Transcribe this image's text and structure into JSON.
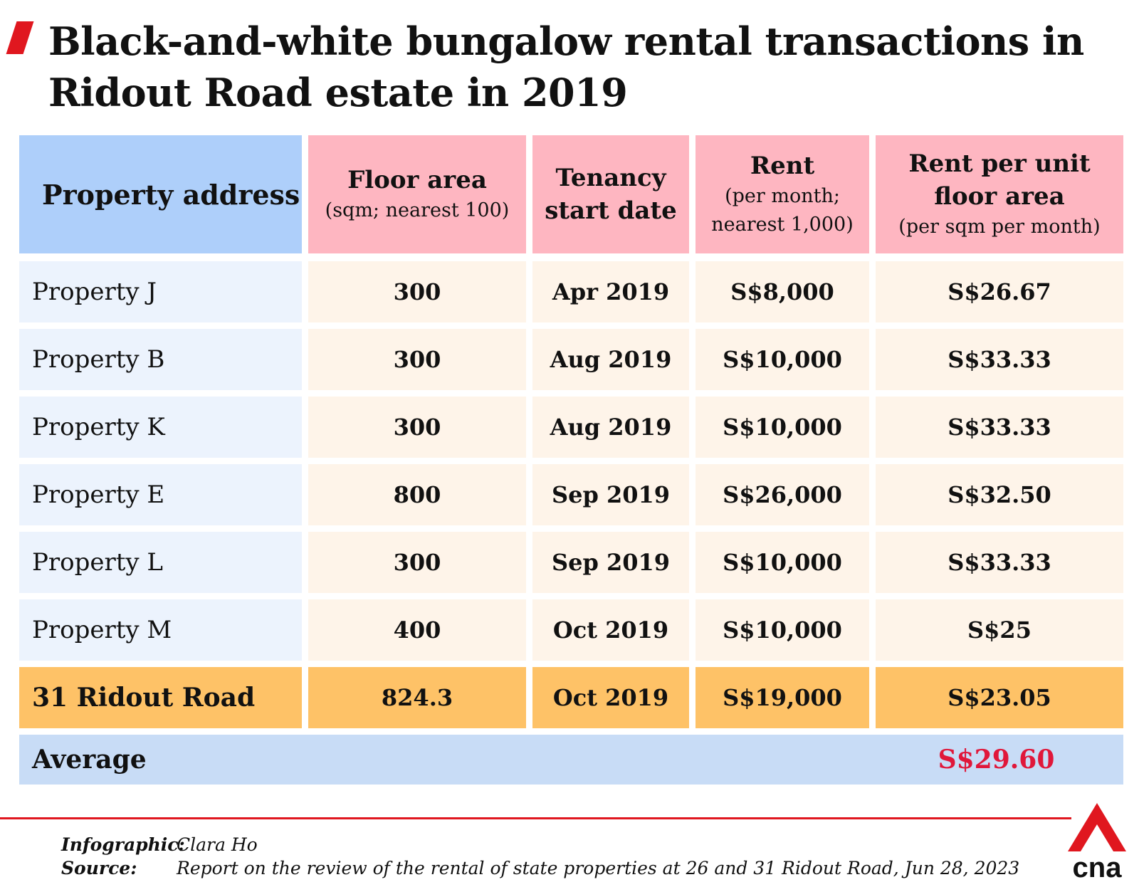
{
  "title": "Black-and-white bungalow rental transactions in Ridout Road estate in 2019",
  "headers": {
    "address": "Property address",
    "floor_area": "Floor area",
    "floor_area_sub": "(sqm; nearest 100)",
    "tenancy_line1": "Tenancy",
    "tenancy_line2": "start date",
    "rent": "Rent",
    "rent_sub1": "(per month;",
    "rent_sub2": "nearest 1,000)",
    "rpu_line1": "Rent per unit",
    "rpu_line2": "floor area",
    "rpu_sub": "(per sqm per month)"
  },
  "rows": [
    {
      "address": "Property J",
      "floor_area": "300",
      "start": "Apr 2019",
      "rent": "S$8,000",
      "rent_per_sqm": "S$26.67"
    },
    {
      "address": "Property B",
      "floor_area": "300",
      "start": "Aug 2019",
      "rent": "S$10,000",
      "rent_per_sqm": "S$33.33"
    },
    {
      "address": "Property K",
      "floor_area": "300",
      "start": "Aug 2019",
      "rent": "S$10,000",
      "rent_per_sqm": "S$33.33"
    },
    {
      "address": "Property E",
      "floor_area": "800",
      "start": "Sep 2019",
      "rent": "S$26,000",
      "rent_per_sqm": "S$32.50"
    },
    {
      "address": "Property L",
      "floor_area": "300",
      "start": "Sep 2019",
      "rent": "S$10,000",
      "rent_per_sqm": "S$33.33"
    },
    {
      "address": "Property M",
      "floor_area": "400",
      "start": "Oct 2019",
      "rent": "S$10,000",
      "rent_per_sqm": "S$25"
    }
  ],
  "highlight": {
    "address": "31 Ridout Road",
    "floor_area": "824.3",
    "start": "Oct 2019",
    "rent": "S$19,000",
    "rent_per_sqm": "S$23.05"
  },
  "average": {
    "label": "Average",
    "value": "S$29.60"
  },
  "footer": {
    "infographic_label": "Infographic:",
    "infographic_value": "Clara Ho",
    "source_label": "Source:",
    "source_value": "Report on the review of the rental of state properties at 26 and 31 Ridout Road, Jun 28, 2023"
  },
  "logo": {
    "text": "cna",
    "icon": "cna-logo-icon"
  },
  "colors": {
    "accent_red": "#e0171f",
    "header_pink": "#feb6c1",
    "header_blue": "#aecffa",
    "address_cell": "#ecf3fd",
    "data_cell": "#fef4e9",
    "highlight_row": "#fec267",
    "average_row": "#c8dcf6",
    "average_value": "#e0173a"
  },
  "chart_data": {
    "type": "table",
    "title": "Black-and-white bungalow rental transactions in Ridout Road estate in 2019",
    "columns": [
      "Property address",
      "Floor area (sqm; nearest 100)",
      "Tenancy start date",
      "Rent (per month; nearest 1,000)",
      "Rent per unit floor area (per sqm per month)"
    ],
    "rows": [
      [
        "Property J",
        300,
        "Apr 2019",
        8000,
        26.67
      ],
      [
        "Property B",
        300,
        "Aug 2019",
        10000,
        33.33
      ],
      [
        "Property K",
        300,
        "Aug 2019",
        10000,
        33.33
      ],
      [
        "Property E",
        800,
        "Sep 2019",
        26000,
        32.5
      ],
      [
        "Property L",
        300,
        "Sep 2019",
        10000,
        33.33
      ],
      [
        "Property M",
        400,
        "Oct 2019",
        10000,
        25
      ],
      [
        "31 Ridout Road",
        824.3,
        "Oct 2019",
        19000,
        23.05
      ]
    ],
    "average_rent_per_sqm": 29.6
  }
}
